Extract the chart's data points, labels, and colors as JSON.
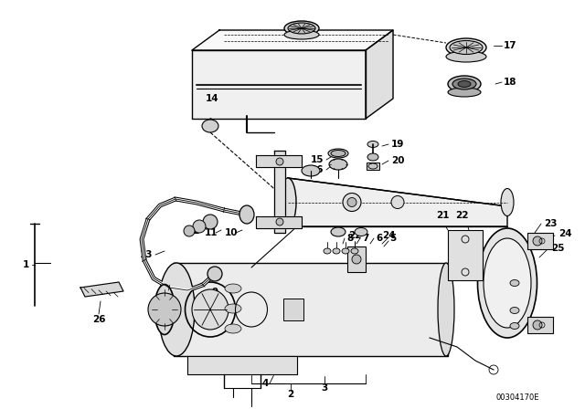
{
  "bg_color": "#ffffff",
  "line_color": "#000000",
  "catalog_num": "00304170E",
  "fig_w": 6.4,
  "fig_h": 4.48,
  "dpi": 100
}
